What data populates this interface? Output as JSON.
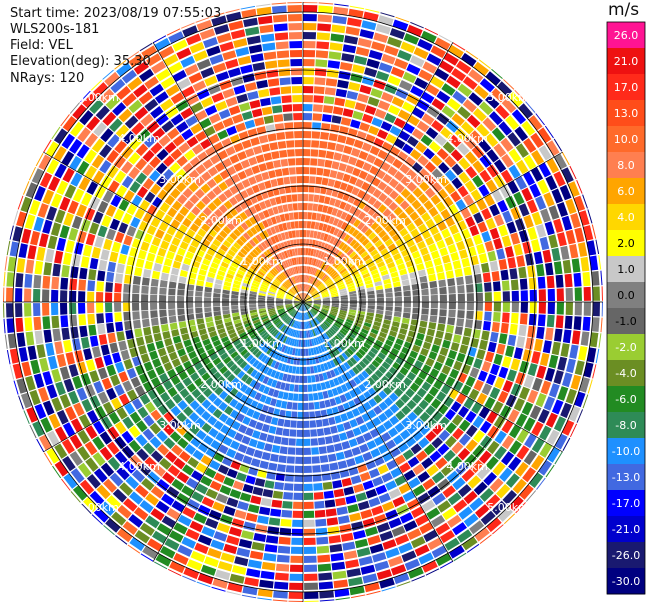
{
  "info": {
    "start_time": "Start time: 2023/08/19 07:55:03",
    "instrument": "WLS200s-181",
    "field": "Field: VEL",
    "elevation": "Elevation(deg): 35.30",
    "nrays": "NRays: 120"
  },
  "colorbar": {
    "unit": "m/s",
    "ticks": [
      "26.0",
      "21.0",
      "17.0",
      "13.0",
      "10.0",
      "8.0",
      "6.0",
      "4.0",
      "2.0",
      "1.0",
      "0.0",
      "-1.0",
      "-2.0",
      "-4.0",
      "-6.0",
      "-8.0",
      "-10.0",
      "-13.0",
      "-17.0",
      "-21.0",
      "-26.0",
      "-30.0"
    ],
    "colors": [
      "#ff1493",
      "#ee1111",
      "#ff2a1a",
      "#ff4d1a",
      "#ff6a2a",
      "#ff7f50",
      "#ffa500",
      "#ffd700",
      "#ffff00",
      "#c8c8c8",
      "#808080",
      "#666666",
      "#9acd32",
      "#6b8e23",
      "#228b22",
      "#2e8b57",
      "#1e90ff",
      "#4169e1",
      "#0000ff",
      "#0000cd",
      "#191970",
      "#000080"
    ]
  },
  "chart_data": {
    "type": "polar-ppi",
    "field": "VEL",
    "units": "m/s",
    "nrays": 120,
    "elevation_deg": 35.3,
    "range_rings_km": [
      1.0,
      2.0,
      3.0,
      4.0,
      5.0
    ],
    "ring_labels": [
      "1.00km",
      "2.00km",
      "3.00km",
      "4.00km",
      "5.00km"
    ],
    "color_scale_min": -30.0,
    "color_scale_max": 26.0,
    "pattern": "Near-range: positive velocities (orange/yellow) in the north half, negative (green/blue) in the south half; beyond ~3 km mostly noisy multicolor returns"
  }
}
